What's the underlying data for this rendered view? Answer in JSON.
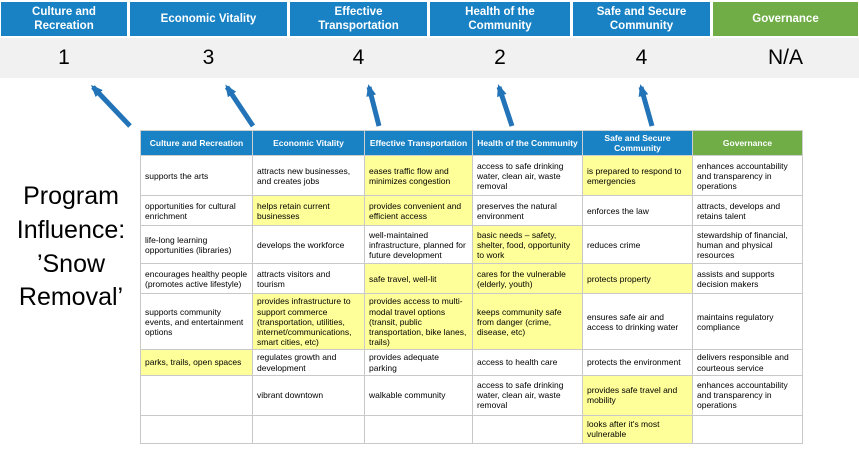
{
  "title": "Program Influence: ’Snow Removal’",
  "colors": {
    "category_blue": "#1982C5",
    "governance_green": "#70AD47",
    "highlight_yellow": "#FFFF99",
    "arrow_blue": "#2273B8",
    "score_band_gray": "#F1F1F1"
  },
  "summary": {
    "columns": [
      {
        "label": "Culture and Recreation",
        "score": "1"
      },
      {
        "label": "Economic Vitality",
        "score": "3"
      },
      {
        "label": "Effective Transportation",
        "score": "4"
      },
      {
        "label": "Health of the Community",
        "score": "2"
      },
      {
        "label": "Safe and Secure Community",
        "score": "4"
      },
      {
        "label": "Governance",
        "score": "N/A"
      }
    ]
  },
  "table": {
    "headers": [
      "Culture and Recreation",
      "Economic Vitality",
      "Effective Transportation",
      "Health of the Community",
      "Safe and Secure Community",
      "Governance"
    ],
    "rows": [
      [
        {
          "t": "supports the arts",
          "h": false
        },
        {
          "t": "attracts new businesses, and creates jobs",
          "h": false
        },
        {
          "t": "eases traffic flow and minimizes congestion",
          "h": true
        },
        {
          "t": "access to safe drinking water, clean air, waste removal",
          "h": false
        },
        {
          "t": "is prepared to respond to emergencies",
          "h": true
        },
        {
          "t": "enhances accountability and transparency in operations",
          "h": false
        }
      ],
      [
        {
          "t": "opportunities for cultural enrichment",
          "h": false
        },
        {
          "t": "helps retain current businesses",
          "h": true
        },
        {
          "t": "provides convenient and efficient access",
          "h": true
        },
        {
          "t": "preserves the natural environment",
          "h": false
        },
        {
          "t": "enforces the law",
          "h": false
        },
        {
          "t": "attracts, develops and retains talent",
          "h": false
        }
      ],
      [
        {
          "t": "life-long learning opportunities (libraries)",
          "h": false
        },
        {
          "t": "develops the workforce",
          "h": false
        },
        {
          "t": "well-maintained infrastructure, planned for future development",
          "h": false
        },
        {
          "t": "basic needs – safety, shelter, food, opportunity to work",
          "h": true
        },
        {
          "t": "reduces crime",
          "h": false
        },
        {
          "t": "stewardship of financial, human and physical resources",
          "h": false
        }
      ],
      [
        {
          "t": "encourages healthy people (promotes active lifestyle)",
          "h": false
        },
        {
          "t": "attracts visitors and tourism",
          "h": false
        },
        {
          "t": "safe travel, well-lit",
          "h": true
        },
        {
          "t": "cares for the vulnerable (elderly, youth)",
          "h": true
        },
        {
          "t": "protects property",
          "h": true
        },
        {
          "t": "assists and supports decision makers",
          "h": false
        }
      ],
      [
        {
          "t": "supports community events, and entertainment options",
          "h": false
        },
        {
          "t": "provides infrastructure to support commerce (transportation, utilities, internet/communications, smart cities, etc)",
          "h": true
        },
        {
          "t": "provides access to multi-modal travel options (transit, public transportation, bike lanes, trails)",
          "h": true
        },
        {
          "t": "keeps community safe from danger (crime, disease, etc)",
          "h": true
        },
        {
          "t": "ensures safe air and access to drinking water",
          "h": false
        },
        {
          "t": "maintains regulatory compliance",
          "h": false
        }
      ],
      [
        {
          "t": "parks, trails, open spaces",
          "h": true
        },
        {
          "t": "regulates growth and development",
          "h": false
        },
        {
          "t": "provides adequate parking",
          "h": false
        },
        {
          "t": "access to health care",
          "h": false
        },
        {
          "t": "protects the environment",
          "h": false
        },
        {
          "t": "delivers responsible and courteous service",
          "h": false
        }
      ],
      [
        {
          "t": "",
          "h": false
        },
        {
          "t": "vibrant downtown",
          "h": false
        },
        {
          "t": "walkable community",
          "h": false
        },
        {
          "t": "access to safe drinking water, clean air, waste removal",
          "h": false
        },
        {
          "t": "provides safe travel and mobility",
          "h": true
        },
        {
          "t": "enhances accountability and transparency in operations",
          "h": false
        }
      ],
      [
        {
          "t": "",
          "h": false
        },
        {
          "t": "",
          "h": false
        },
        {
          "t": "",
          "h": false
        },
        {
          "t": "",
          "h": false
        },
        {
          "t": "looks after it's most vulnerable",
          "h": true
        },
        {
          "t": "",
          "h": false
        }
      ]
    ]
  }
}
